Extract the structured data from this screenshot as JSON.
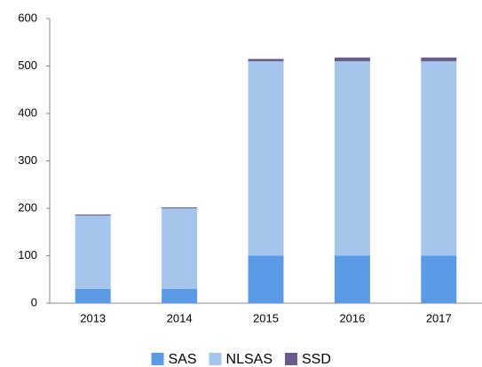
{
  "chart_data": {
    "type": "stacked_bar",
    "categories": [
      "2013",
      "2014",
      "2015",
      "2016",
      "2017"
    ],
    "series": [
      {
        "name": "SAS",
        "color": "#5b9be6",
        "values": [
          30,
          30,
          100,
          100,
          100
        ]
      },
      {
        "name": "NLSAS",
        "color": "#a6c5ea",
        "values": [
          155,
          170,
          410,
          410,
          410
        ]
      },
      {
        "name": "SSD",
        "color": "#6a5b8e",
        "values": [
          2,
          2,
          5,
          8,
          8
        ]
      }
    ],
    "ylim": [
      0,
      600
    ],
    "yticks": [
      0,
      100,
      200,
      300,
      400,
      500,
      600
    ],
    "grid": false,
    "legend": "bottom"
  }
}
